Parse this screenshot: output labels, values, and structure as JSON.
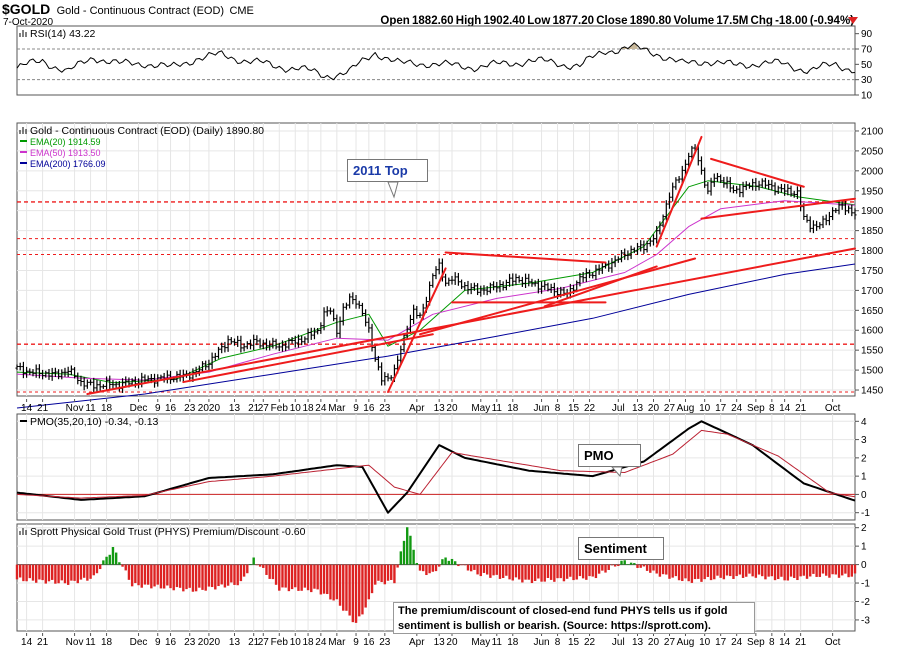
{
  "header": {
    "symbol": "$GOLD",
    "name": "Gold - Continuous Contract (EOD)",
    "exchange": "CME",
    "date": "7-Oct-2020",
    "quote": "Open 1882.60  High 1902.40  Low 1877.20  Close 1890.80  Volume 17.5M  Chg -18.00 (-0.94%)"
  },
  "colors": {
    "price": "#000000",
    "ema20": "#009900",
    "ema50": "#cc33cc",
    "ema200": "#000099",
    "trendline": "#ee1c1c",
    "pmo_signal": "#bb2233",
    "hist_pos": "#119911",
    "hist_neg": "#dd2222",
    "rsi_fill": "#c8b89a",
    "grid": "#e6e6e6"
  },
  "icons": {
    "legend_marker": "mini-bars-icon",
    "collapse": "red-triangle-icon"
  },
  "chart_data": [
    {
      "id": "rsi",
      "type": "line",
      "title": "RSI(14) 43.22",
      "ylim": [
        10,
        100
      ],
      "yticks": [
        90,
        70,
        50,
        30,
        10
      ],
      "reference_lines": [
        70,
        30
      ],
      "shade_above": 70,
      "x": [
        0,
        8,
        16,
        24,
        32,
        40,
        48,
        56,
        64,
        72,
        80,
        88,
        96,
        104,
        112,
        120,
        128,
        136,
        144,
        152,
        160,
        168,
        176,
        184,
        192,
        200,
        208,
        216,
        224,
        232,
        240,
        248,
        256,
        262
      ],
      "values": [
        45,
        55,
        40,
        60,
        50,
        52,
        45,
        58,
        62,
        55,
        48,
        45,
        35,
        40,
        66,
        50,
        52,
        48,
        47,
        50,
        55,
        52,
        48,
        68,
        72,
        65,
        50,
        55,
        48,
        52,
        50,
        42,
        50,
        43
      ]
    },
    {
      "id": "price",
      "type": "candlestick",
      "title": "Gold - Continuous Contract (EOD) (Daily) 1890.80",
      "legend": [
        "EMA(20) 1914.59",
        "EMA(50) 1913.50",
        "EMA(200) 1766.09"
      ],
      "ylim": [
        1435,
        2120
      ],
      "yticks": [
        2100,
        2050,
        2000,
        1950,
        1900,
        1850,
        1800,
        1750,
        1700,
        1650,
        1600,
        1550,
        1500,
        1450
      ],
      "x_labels": [
        {
          "x": 3,
          "label": "14"
        },
        {
          "x": 8,
          "label": "21"
        },
        {
          "x": 18,
          "label": "Nov"
        },
        {
          "x": 23,
          "label": "11"
        },
        {
          "x": 28,
          "label": "18"
        },
        {
          "x": 38,
          "label": "Dec"
        },
        {
          "x": 44,
          "label": "9"
        },
        {
          "x": 48,
          "label": "16"
        },
        {
          "x": 54,
          "label": "23"
        },
        {
          "x": 60,
          "label": "2020"
        },
        {
          "x": 68,
          "label": "13"
        },
        {
          "x": 74,
          "label": "21"
        },
        {
          "x": 77,
          "label": "27"
        },
        {
          "x": 82,
          "label": "Feb"
        },
        {
          "x": 87,
          "label": "10"
        },
        {
          "x": 91,
          "label": "18"
        },
        {
          "x": 95,
          "label": "24"
        },
        {
          "x": 100,
          "label": "Mar"
        },
        {
          "x": 106,
          "label": "9"
        },
        {
          "x": 110,
          "label": "16"
        },
        {
          "x": 115,
          "label": "23"
        },
        {
          "x": 125,
          "label": "Apr"
        },
        {
          "x": 132,
          "label": "13"
        },
        {
          "x": 136,
          "label": "20"
        },
        {
          "x": 145,
          "label": "May"
        },
        {
          "x": 150,
          "label": "11"
        },
        {
          "x": 155,
          "label": "18"
        },
        {
          "x": 164,
          "label": "Jun"
        },
        {
          "x": 169,
          "label": "8"
        },
        {
          "x": 174,
          "label": "15"
        },
        {
          "x": 179,
          "label": "22"
        },
        {
          "x": 188,
          "label": "Jul"
        },
        {
          "x": 194,
          "label": "13"
        },
        {
          "x": 199,
          "label": "20"
        },
        {
          "x": 204,
          "label": "27"
        },
        {
          "x": 209,
          "label": "Aug"
        },
        {
          "x": 215,
          "label": "10"
        },
        {
          "x": 220,
          "label": "17"
        },
        {
          "x": 225,
          "label": "24"
        },
        {
          "x": 231,
          "label": "Sep"
        },
        {
          "x": 236,
          "label": "8"
        },
        {
          "x": 240,
          "label": "14"
        },
        {
          "x": 245,
          "label": "21"
        },
        {
          "x": 255,
          "label": "Oct"
        }
      ],
      "anchors": {
        "x": [
          0,
          4,
          8,
          12,
          16,
          20,
          24,
          28,
          32,
          36,
          40,
          44,
          48,
          52,
          56,
          60,
          64,
          66,
          68,
          70,
          74,
          78,
          82,
          86,
          90,
          92,
          94,
          96,
          98,
          100,
          102,
          104,
          106,
          108,
          110,
          112,
          114,
          116,
          118,
          120,
          122,
          124,
          126,
          128,
          130,
          132,
          134,
          136,
          140,
          144,
          148,
          152,
          156,
          160,
          164,
          168,
          172,
          176,
          180,
          184,
          188,
          192,
          196,
          200,
          204,
          206,
          208,
          210,
          212,
          214,
          216,
          218,
          220,
          224,
          228,
          232,
          236,
          240,
          244,
          246,
          248,
          250,
          252,
          254,
          256,
          258,
          260,
          262
        ],
        "close": [
          1505,
          1495,
          1492,
          1488,
          1500,
          1470,
          1460,
          1465,
          1463,
          1470,
          1476,
          1478,
          1482,
          1485,
          1495,
          1520,
          1555,
          1575,
          1570,
          1560,
          1570,
          1565,
          1560,
          1570,
          1580,
          1590,
          1600,
          1640,
          1650,
          1600,
          1650,
          1680,
          1675,
          1640,
          1600,
          1530,
          1475,
          1480,
          1500,
          1550,
          1610,
          1650,
          1630,
          1680,
          1740,
          1760,
          1720,
          1730,
          1710,
          1700,
          1705,
          1715,
          1730,
          1720,
          1710,
          1700,
          1690,
          1730,
          1745,
          1760,
          1780,
          1800,
          1810,
          1840,
          1940,
          1970,
          2000,
          2040,
          2055,
          2000,
          1945,
          1985,
          1980,
          1950,
          1960,
          1970,
          1960,
          1950,
          1945,
          1880,
          1865,
          1860,
          1870,
          1890,
          1905,
          1910,
          1905,
          1890
        ]
      },
      "moving_averages": [
        {
          "name": "EMA(20)",
          "value": 1914.59,
          "x": [
            0,
            16,
            30,
            50,
            64,
            80,
            100,
            110,
            116,
            126,
            140,
            160,
            180,
            196,
            210,
            216,
            232,
            244,
            262
          ],
          "values": [
            1495,
            1490,
            1468,
            1478,
            1530,
            1560,
            1620,
            1640,
            1560,
            1600,
            1700,
            1718,
            1745,
            1810,
            1960,
            1975,
            1960,
            1935,
            1914.59
          ]
        },
        {
          "name": "EMA(50)",
          "value": 1913.5,
          "x": [
            0,
            20,
            40,
            60,
            80,
            100,
            116,
            130,
            150,
            170,
            190,
            200,
            210,
            220,
            240,
            262
          ],
          "values": [
            1490,
            1480,
            1475,
            1495,
            1540,
            1580,
            1575,
            1640,
            1680,
            1705,
            1745,
            1790,
            1860,
            1905,
            1925,
            1913.5
          ]
        },
        {
          "name": "EMA(200)",
          "value": 1766.09,
          "x": [
            0,
            40,
            80,
            116,
            150,
            180,
            210,
            240,
            262
          ],
          "values": [
            1405,
            1440,
            1490,
            1535,
            1585,
            1630,
            1690,
            1740,
            1766.09
          ]
        }
      ],
      "horizontal_lines": [
        1922,
        1830,
        1790,
        1565,
        1445
      ],
      "trendlines": [
        {
          "from": [
            22,
            1440
          ],
          "to": [
            262,
            1805
          ]
        },
        {
          "from": [
            52,
            1470
          ],
          "to": [
            130,
            1590
          ]
        },
        {
          "from": [
            116,
            1445
          ],
          "to": [
            134,
            1755
          ]
        },
        {
          "from": [
            134,
            1795
          ],
          "to": [
            184,
            1770
          ]
        },
        {
          "from": [
            136,
            1670
          ],
          "to": [
            184,
            1670
          ]
        },
        {
          "from": [
            165,
            1660
          ],
          "to": [
            200,
            1760
          ]
        },
        {
          "from": [
            126,
            1590
          ],
          "to": [
            212,
            1780
          ]
        },
        {
          "from": [
            200,
            1810
          ],
          "to": [
            214,
            2085
          ]
        },
        {
          "from": [
            217,
            2030
          ],
          "to": [
            246,
            1960
          ]
        },
        {
          "from": [
            214,
            1880
          ],
          "to": [
            262,
            1930
          ]
        }
      ],
      "annotation": "2011 Top"
    },
    {
      "id": "pmo",
      "type": "line",
      "title": "PMO(35,20,10) -0.34, -0.13",
      "ylim": [
        -1.4,
        4.4
      ],
      "yticks": [
        4,
        3,
        2,
        1,
        0,
        -1
      ],
      "zero_line": 0,
      "series": [
        {
          "name": "PMO(35,20,10)",
          "value": -0.34,
          "x": [
            0,
            20,
            40,
            60,
            80,
            100,
            108,
            116,
            122,
            132,
            140,
            160,
            180,
            196,
            210,
            214,
            230,
            246,
            262
          ],
          "values": [
            0.1,
            -0.3,
            -0.1,
            0.9,
            1.1,
            1.6,
            1.5,
            -1.0,
            0.1,
            2.7,
            2.0,
            1.3,
            1.0,
            1.8,
            3.6,
            4.0,
            2.7,
            0.6,
            -0.34
          ]
        },
        {
          "name": "signal",
          "value": -0.13,
          "x": [
            0,
            20,
            40,
            60,
            80,
            100,
            110,
            118,
            126,
            136,
            146,
            170,
            190,
            205,
            214,
            222,
            238,
            254,
            262
          ],
          "values": [
            0.0,
            -0.2,
            -0.05,
            0.7,
            1.0,
            1.4,
            1.6,
            0.4,
            0.0,
            2.3,
            2.0,
            1.3,
            1.2,
            2.2,
            3.5,
            3.3,
            2.1,
            0.1,
            -0.13
          ]
        }
      ],
      "annotation": "PMO"
    },
    {
      "id": "sentiment",
      "type": "bar",
      "title": "Sprott Physical Gold Trust (PHYS) Premium/Discount -0.60",
      "ylim": [
        -3.6,
        2.2
      ],
      "yticks": [
        2,
        1,
        0,
        -1,
        -2,
        -3
      ],
      "zero_line": 0,
      "x": [
        0,
        8,
        16,
        24,
        28,
        30,
        36,
        44,
        56,
        70,
        74,
        82,
        94,
        100,
        104,
        106,
        108,
        110,
        112,
        118,
        120,
        122,
        124,
        126,
        130,
        134,
        144,
        160,
        170,
        180,
        190,
        200,
        210,
        220,
        230,
        240,
        250,
        262
      ],
      "values": [
        -0.8,
        -0.9,
        -1.0,
        -0.7,
        0.4,
        0.9,
        -1.1,
        -1.2,
        -1.4,
        -1.0,
        0.3,
        -1.3,
        -1.4,
        -2.0,
        -2.8,
        -3.2,
        -2.6,
        -2.0,
        -1.0,
        -0.9,
        0.6,
        2.1,
        0.8,
        -0.4,
        -0.5,
        0.4,
        -0.5,
        -0.9,
        -0.8,
        -0.7,
        0.2,
        -0.5,
        -0.9,
        -0.7,
        -0.6,
        -0.8,
        -0.6,
        -0.6
      ],
      "annotation": "Sentiment",
      "note": "The premium/discount of closed-end fund PHYS tells us if gold sentiment is bullish or bearish. (Source: https://sprott.com)."
    }
  ]
}
